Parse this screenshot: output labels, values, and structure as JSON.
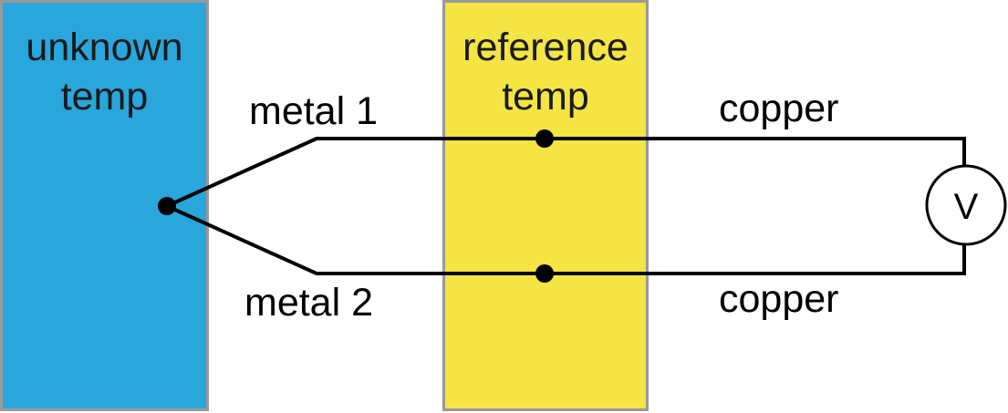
{
  "zones": {
    "unknown": {
      "line1": "unknown",
      "line2": "temp",
      "color": "#29a6dc"
    },
    "reference": {
      "line1": "reference",
      "line2": "temp",
      "color": "#f4e444"
    }
  },
  "wires": {
    "metal_1": "metal 1",
    "metal_2": "metal 2",
    "copper_top": "copper",
    "copper_bottom": "copper"
  },
  "voltmeter": {
    "symbol": "V"
  },
  "colors": {
    "wire": "#000000",
    "zone_border": "#999999"
  }
}
